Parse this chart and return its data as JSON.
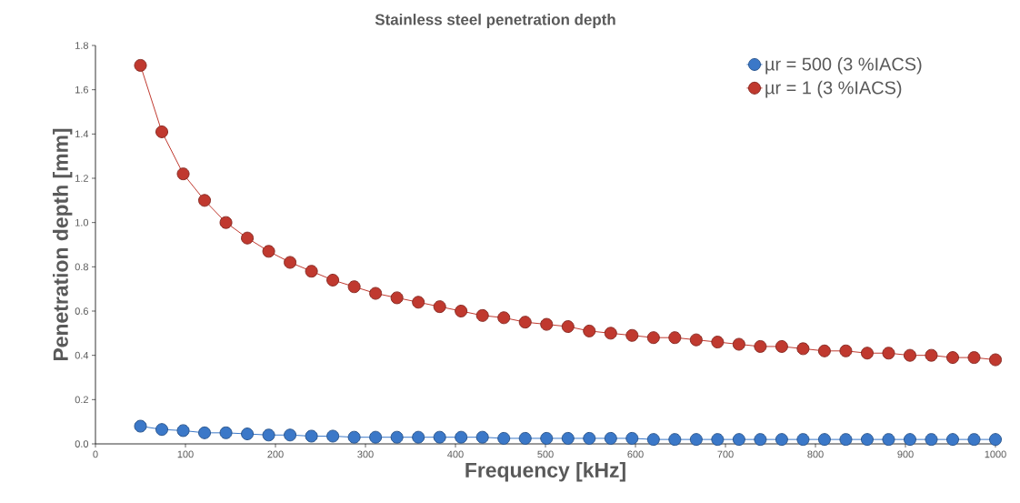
{
  "chart_data": {
    "type": "line",
    "title": "Stainless steel penetration depth",
    "xlabel": "Frequency [kHz]",
    "ylabel": "Penetration depth [mm]",
    "x": [
      50,
      73.75,
      97.5,
      121.25,
      145,
      168.75,
      192.5,
      216.25,
      240,
      263.75,
      287.5,
      311.25,
      335,
      358.75,
      382.5,
      406.25,
      430,
      453.75,
      477.5,
      501.25,
      525,
      548.75,
      572.5,
      596.25,
      620,
      643.75,
      667.5,
      691.25,
      715,
      738.75,
      762.5,
      786.25,
      810,
      833.75,
      857.5,
      881.25,
      905,
      928.75,
      952.5,
      976.25,
      1000
    ],
    "series": [
      {
        "name": "µr = 500 (3 %IACS)",
        "color": "#3b78c8",
        "values": [
          0.08,
          0.065,
          0.06,
          0.05,
          0.05,
          0.045,
          0.04,
          0.04,
          0.035,
          0.035,
          0.03,
          0.03,
          0.03,
          0.03,
          0.03,
          0.03,
          0.03,
          0.025,
          0.025,
          0.025,
          0.025,
          0.025,
          0.025,
          0.025,
          0.02,
          0.02,
          0.02,
          0.02,
          0.02,
          0.02,
          0.02,
          0.02,
          0.02,
          0.02,
          0.02,
          0.02,
          0.02,
          0.02,
          0.02,
          0.02,
          0.02
        ]
      },
      {
        "name": "µr = 1 (3 %IACS)",
        "color": "#c0392f",
        "values": [
          1.71,
          1.41,
          1.22,
          1.1,
          1.0,
          0.93,
          0.87,
          0.82,
          0.78,
          0.74,
          0.71,
          0.68,
          0.66,
          0.64,
          0.62,
          0.6,
          0.58,
          0.57,
          0.55,
          0.54,
          0.53,
          0.51,
          0.5,
          0.49,
          0.48,
          0.48,
          0.47,
          0.46,
          0.45,
          0.44,
          0.44,
          0.43,
          0.42,
          0.42,
          0.41,
          0.41,
          0.4,
          0.4,
          0.39,
          0.39,
          0.38
        ]
      }
    ],
    "xlim": [
      0,
      1000
    ],
    "xticks": [
      0,
      100,
      200,
      300,
      400,
      500,
      600,
      700,
      800,
      900,
      1000
    ],
    "ylim": [
      0,
      1.8
    ],
    "yticks": [
      {
        "value": 0,
        "label": "0.0"
      },
      0.2,
      0.4,
      0.6,
      0.8,
      {
        "value": 1,
        "label": "1.0"
      },
      1.2,
      1.4,
      1.6,
      1.8
    ],
    "grid": false,
    "legend": "top right",
    "marker": "circle",
    "line_style": "solid"
  }
}
